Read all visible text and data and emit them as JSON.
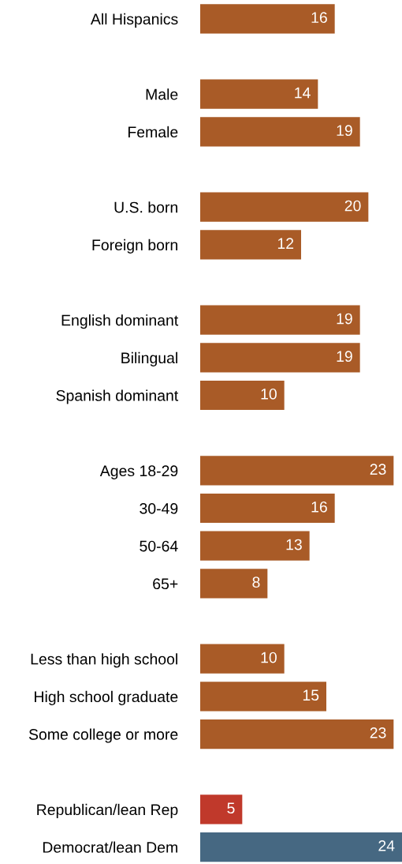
{
  "chart_data": {
    "type": "bar",
    "orientation": "horizontal",
    "data_labels": true,
    "categories": [
      "All Hispanics",
      null,
      "Male",
      "Female",
      null,
      "U.S. born",
      "Foreign born",
      null,
      "English dominant",
      "Bilingual",
      "Spanish dominant",
      null,
      "Ages 18-29",
      "30-49",
      "50-64",
      "65+",
      null,
      "Less than high school",
      "High school graduate",
      "Some college or more",
      null,
      "Republican/lean Rep",
      "Democrat/lean Dem"
    ],
    "values": [
      16,
      null,
      14,
      19,
      null,
      20,
      12,
      null,
      19,
      19,
      10,
      null,
      23,
      16,
      13,
      8,
      null,
      10,
      15,
      23,
      null,
      5,
      24
    ],
    "colors": [
      "#a95b27",
      null,
      "#a95b27",
      "#a95b27",
      null,
      "#a95b27",
      "#a95b27",
      null,
      "#a95b27",
      "#a95b27",
      "#a95b27",
      null,
      "#a95b27",
      "#a95b27",
      "#a95b27",
      "#a95b27",
      null,
      "#a95b27",
      "#a95b27",
      "#a95b27",
      null,
      "#c0392b",
      "#466882"
    ]
  }
}
